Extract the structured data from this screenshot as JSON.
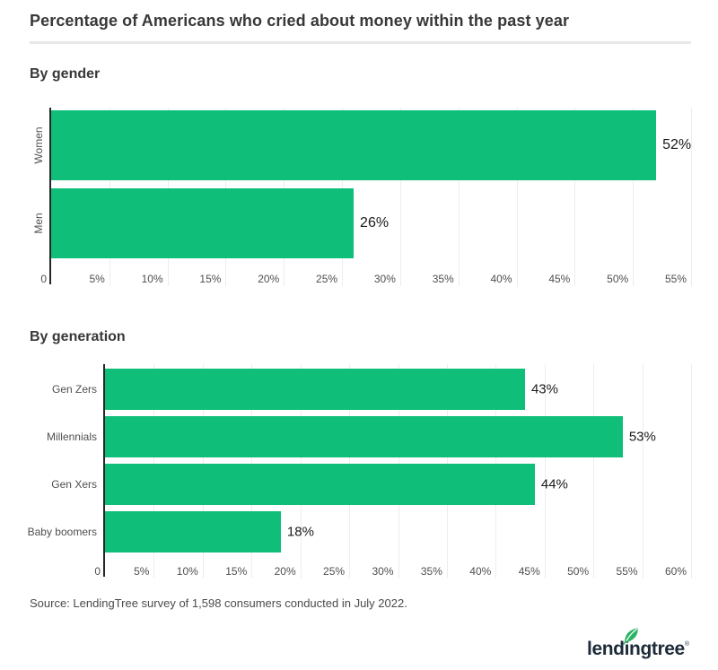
{
  "page": {
    "title": "Percentage of Americans who cried about money within the past year",
    "source": "Source: LendingTree survey of 1,598 consumers conducted in July 2022.",
    "logo": {
      "text": "lendingtree",
      "registered_mark": "®"
    }
  },
  "colors": {
    "bar_green": "#0ebe79",
    "axis": "#262626",
    "gridline": "#ededed",
    "divider": "#e8e8e8",
    "title_text": "#383838",
    "label_text": "#4f4f4f",
    "value_text": "#1a1a1a",
    "logo_navy": "#1d2b39",
    "leaf_green": "#2bb363"
  },
  "chart_data": [
    {
      "type": "bar",
      "orientation": "horizontal",
      "title": "By gender",
      "categories": [
        "Women",
        "Men"
      ],
      "values": [
        52,
        26
      ],
      "value_labels": [
        "52%",
        "26%"
      ],
      "xlim": [
        0,
        55
      ],
      "tick_values": [
        0,
        5,
        10,
        15,
        20,
        25,
        30,
        35,
        40,
        45,
        50,
        55
      ],
      "tick_labels": [
        "0",
        "5%",
        "10%",
        "15%",
        "20%",
        "25%",
        "30%",
        "35%",
        "40%",
        "45%",
        "50%",
        "55%"
      ],
      "grid": true,
      "legend": false,
      "category_label_orientation": "vertical"
    },
    {
      "type": "bar",
      "orientation": "horizontal",
      "title": "By generation",
      "categories": [
        "Gen Zers",
        "Millennials",
        "Gen Xers",
        "Baby boomers"
      ],
      "values": [
        43,
        53,
        44,
        18
      ],
      "value_labels": [
        "43%",
        "53%",
        "44%",
        "18%"
      ],
      "xlim": [
        0,
        60
      ],
      "tick_values": [
        0,
        5,
        10,
        15,
        20,
        25,
        30,
        35,
        40,
        45,
        50,
        55,
        60
      ],
      "tick_labels": [
        "0",
        "5%",
        "10%",
        "15%",
        "20%",
        "25%",
        "30%",
        "35%",
        "40%",
        "45%",
        "50%",
        "55%",
        "60%"
      ],
      "grid": true,
      "legend": false,
      "category_label_orientation": "horizontal"
    }
  ]
}
